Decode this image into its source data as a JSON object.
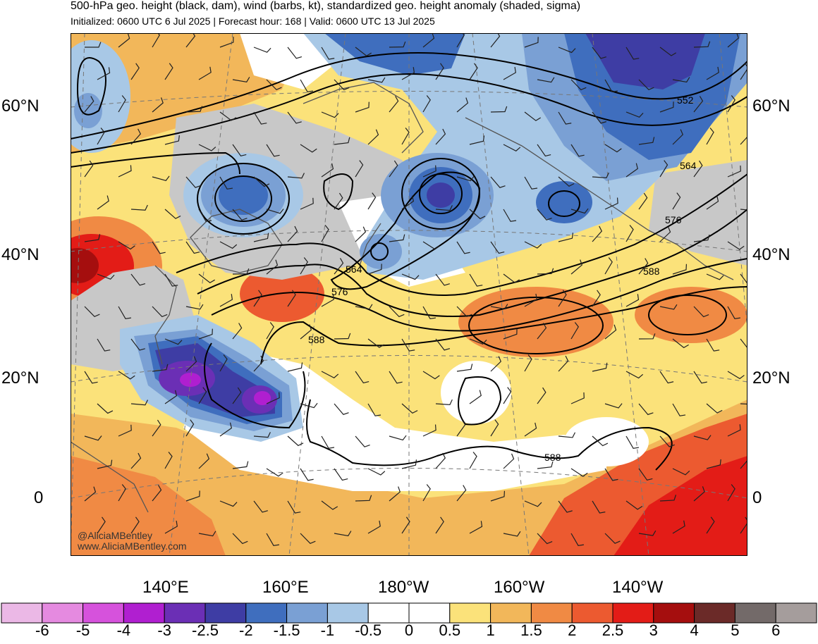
{
  "title": "500-hPa geo. height (black, dam), wind (barbs, kt), standardized geo. height anomaly (shaded, sigma)",
  "subtitle": "Initialized: 0600 UTC 6 Jul 2025 | Forecast hour: 168 | Valid: 0600 UTC 13 Jul 2025",
  "lat_labels": [
    "60°N",
    "40°N",
    "20°N",
    "0"
  ],
  "lon_labels": [
    "140°E",
    "160°E",
    "180°W",
    "160°W",
    "140°W"
  ],
  "contour_labels": [
    "552",
    "564",
    "576",
    "564",
    "576",
    "588",
    "588",
    "588"
  ],
  "credit": {
    "handle": "@AliciaMBentley",
    "site": "www.AliciaMBentley.com"
  },
  "colorbar": {
    "labels": [
      "-6",
      "-5",
      "-4",
      "-3",
      "-2.5",
      "-2",
      "-1.5",
      "-1",
      "-0.5",
      "0",
      "0.5",
      "1",
      "1.5",
      "2",
      "2.5",
      "3",
      "4",
      "5",
      "6"
    ],
    "colors": [
      "#ebb8e6",
      "#e58ae0",
      "#d652dc",
      "#b01fd0",
      "#6b2fb5",
      "#3e3da4",
      "#3f6ebe",
      "#7aa0d4",
      "#a8c8e6",
      "#ffffff",
      "#ffffff",
      "#fbe27a",
      "#f2b75a",
      "#f08a44",
      "#ec5a30",
      "#e31c17",
      "#a50e0e",
      "#6b2a28",
      "#736a69",
      "#a59d9c"
    ]
  }
}
